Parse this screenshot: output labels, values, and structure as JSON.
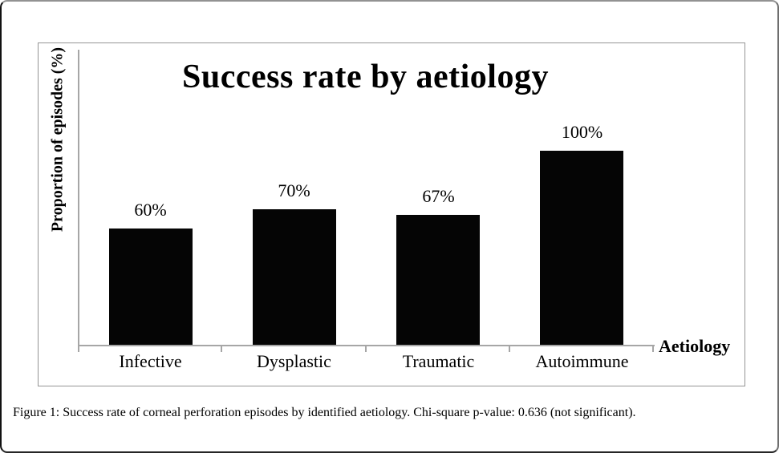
{
  "chart_data": {
    "type": "bar",
    "title": "Success rate by aetiology",
    "xlabel": "Aetiology",
    "ylabel": "Proportion of episodes (%)",
    "categories": [
      "Infective",
      "Dysplastic",
      "Traumatic",
      "Autoimmune"
    ],
    "values": [
      60,
      70,
      67,
      100
    ],
    "value_labels": [
      "60%",
      "70%",
      "67%",
      "100%"
    ],
    "bar_color": "#050505",
    "axis_color": "#a6a6a6",
    "frame_border_color": "#949494",
    "ylim": [
      0,
      150
    ],
    "y_tick_labels": [],
    "grid": false,
    "legend": "none"
  },
  "caption": {
    "label": "Figure 1:",
    "text": "Success rate of corneal perforation episodes by identified aetiology. Chi-square p-value: 0.636 (not significant)."
  }
}
